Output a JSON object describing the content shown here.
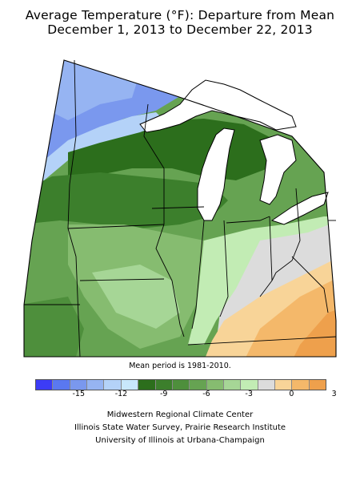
{
  "title_line1": "Average Temperature (°F): Departure from Mean",
  "title_line2": "December 1, 2013 to December 22, 2013",
  "note": "Mean period is 1981-2010.",
  "legend": {
    "colors": [
      "#3c3cf6",
      "#5a78f0",
      "#7a98ee",
      "#96b4f2",
      "#b4d2f8",
      "#c8e8fb",
      "#2c6e1c",
      "#3c7f2c",
      "#4e8f3c",
      "#66a352",
      "#86bc70",
      "#a6d696",
      "#c2ecb4",
      "#dcdcdc",
      "#f8d498",
      "#f4b86a",
      "#eea04c"
    ],
    "tick_labels": [
      "-15",
      "-12",
      "-9",
      "-6",
      "-3",
      "0",
      "3"
    ]
  },
  "credits": [
    "Midwestern Regional Climate Center",
    "Illinois State Water Survey, Prairie Research Institute",
    "University of Illinois at Urbana-Champaign"
  ]
}
